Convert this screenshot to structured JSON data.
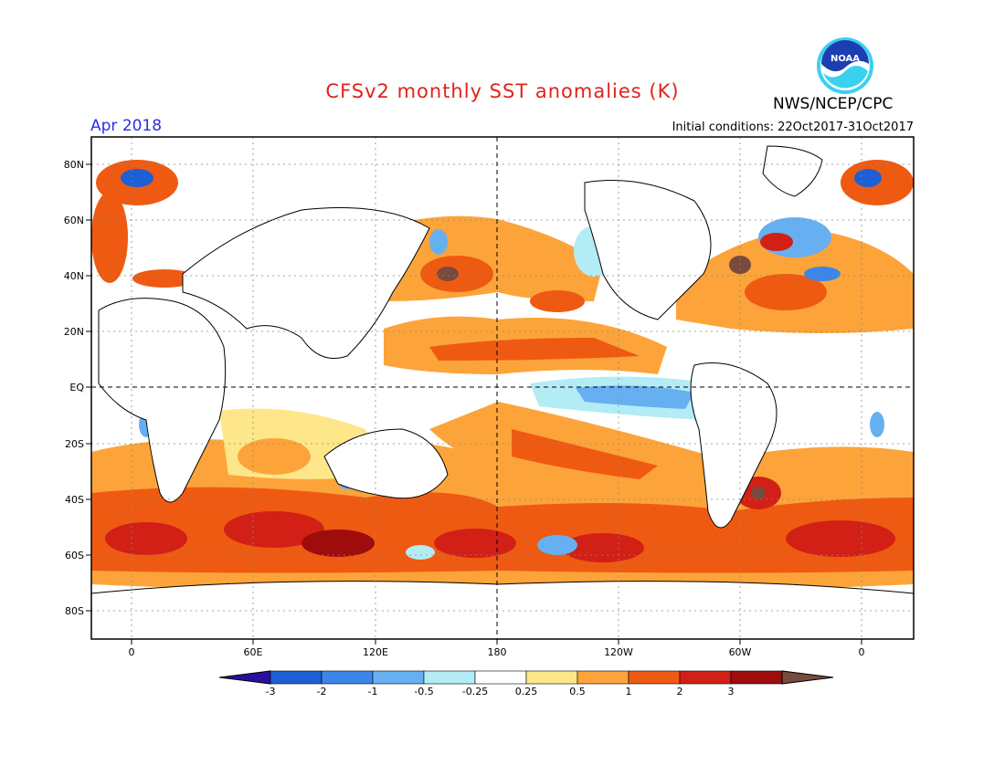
{
  "header": {
    "title": "CFSv2 monthly SST anomalies (K)",
    "valid_month": "Apr 2018",
    "initial_conditions": "Initial conditions: 22Oct2017-31Oct2017",
    "agency": "NWS/NCEP/CPC",
    "logo_text": "NOAA"
  },
  "map": {
    "lat_labels": [
      "80N",
      "60N",
      "40N",
      "20N",
      "EQ",
      "20S",
      "40S",
      "60S",
      "80S"
    ],
    "lon_labels": [
      "0",
      "60E",
      "120E",
      "180",
      "120W",
      "60W",
      "0"
    ]
  },
  "colorbar": {
    "labels": [
      "-3",
      "-2",
      "-1",
      "-0.5",
      "-0.25",
      "0.25",
      "0.5",
      "1",
      "2",
      "3"
    ],
    "colors": [
      "#2a0f9e",
      "#1d5fd4",
      "#3c86ea",
      "#66b0f2",
      "#b3ecf5",
      "#ffffff",
      "#fde78a",
      "#fca43a",
      "#ef5a12",
      "#d22016",
      "#9e0c0c",
      "#7a4a3d"
    ]
  }
}
